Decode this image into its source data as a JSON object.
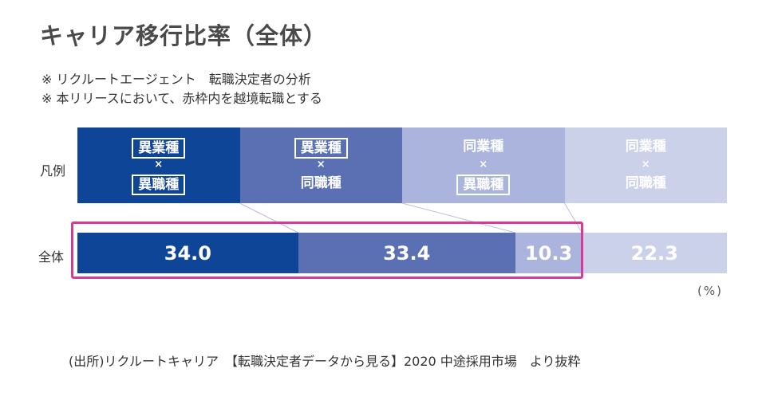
{
  "title": "キャリア移行比率（全体）",
  "notes": [
    "※ リクルートエージェント　転職決定者の分析",
    "※ 本リリースにおいて、赤枠内を越境転職とする"
  ],
  "row_labels": {
    "legend": "凡例",
    "total": "全体"
  },
  "unit": "(%)",
  "source": "(出所)リクルートキャリア　【転職決定者データから見る】2020 中途採用市場　より抜粋",
  "colors": {
    "seg1": "#0e4596",
    "seg2": "#5a70b3",
    "seg3": "#aab4dc",
    "seg4": "#ccd1ea",
    "frame": "#d63c97"
  },
  "legend": [
    {
      "top": "異業種",
      "cross": "×",
      "bottom": "異職種",
      "top_boxed": true,
      "bottom_boxed": true
    },
    {
      "top": "異業種",
      "cross": "×",
      "bottom": "同職種",
      "top_boxed": true,
      "bottom_boxed": false
    },
    {
      "top": "同業種",
      "cross": "×",
      "bottom": "異職種",
      "top_boxed": false,
      "bottom_boxed": true
    },
    {
      "top": "同業種",
      "cross": "×",
      "bottom": "同職種",
      "top_boxed": false,
      "bottom_boxed": false
    }
  ],
  "chart_data": {
    "type": "bar",
    "stacked": true,
    "orientation": "horizontal",
    "categories": [
      "全体"
    ],
    "series": [
      {
        "name": "異業種×異職種",
        "values": [
          34.0
        ],
        "label": "34.0"
      },
      {
        "name": "異業種×同職種",
        "values": [
          33.4
        ],
        "label": "33.4"
      },
      {
        "name": "同業種×異職種",
        "values": [
          10.3
        ],
        "label": "10.3"
      },
      {
        "name": "同業種×同職種",
        "values": [
          22.3
        ],
        "label": "22.3"
      }
    ],
    "total": 100
  }
}
